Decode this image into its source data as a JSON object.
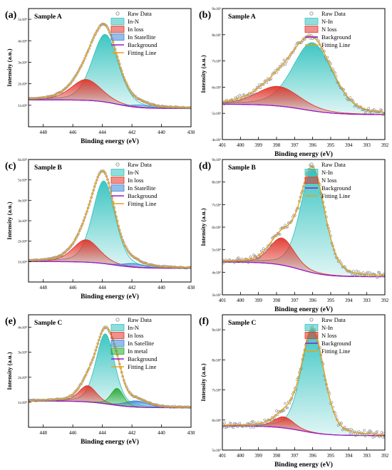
{
  "figure": {
    "colors": {
      "raw_marker": "#8a8a8a",
      "fit_line": "#e6a21a",
      "background": "#9a19c8",
      "in_n": "#33c3bf",
      "loss": "#e0362c",
      "satellite": "#3d86d6",
      "metal": "#2ba82d"
    }
  },
  "chart_data": [
    {
      "id": "a",
      "type": "line",
      "panel_label": "(a)",
      "sample_label": "Sample A",
      "xlabel": "Binding energy (eV)",
      "ylabel": "Intensity (a.u.)",
      "x_reversed": true,
      "xlim": [
        449,
        438
      ],
      "x_ticks": [
        448,
        446,
        444,
        442,
        440,
        438
      ],
      "ylim": [
        0,
        55000
      ],
      "y_ticks": [
        {
          "v": 10000,
          "l": "1x10⁴"
        },
        {
          "v": 20000,
          "l": "2x10⁴"
        },
        {
          "v": 30000,
          "l": "3x10⁴"
        },
        {
          "v": 40000,
          "l": "4x10⁴"
        },
        {
          "v": 50000,
          "l": "5x10⁴"
        }
      ],
      "background": {
        "left": 12500,
        "right": 8500,
        "mid": 443,
        "width": 1.6
      },
      "components": [
        {
          "name": "In-N",
          "center": 443.8,
          "height": 31500,
          "fwhm": 2.1,
          "color": "in_n"
        },
        {
          "name": "In loss",
          "center": 445.1,
          "height": 9700,
          "fwhm": 2.4,
          "color": "loss"
        },
        {
          "name": "In Statellite",
          "center": 441.4,
          "height": 1200,
          "fwhm": 1.4,
          "color": "satellite"
        }
      ],
      "legend": [
        "Raw Data",
        "In-N",
        "In loss",
        "In Statellite",
        "Background",
        "Fitting Line"
      ],
      "noise": 250
    },
    {
      "id": "b",
      "type": "line",
      "panel_label": "(b)",
      "sample_label": "Sample A",
      "xlabel": "Binding energy (eV)",
      "ylabel": "Intensity (a.u.)",
      "x_reversed": true,
      "xlim": [
        401,
        392
      ],
      "x_ticks": [
        401,
        400,
        399,
        398,
        397,
        396,
        395,
        394,
        393,
        392
      ],
      "ylim": [
        4000,
        9000
      ],
      "y_ticks": [
        {
          "v": 4000,
          "l": "4x10³"
        },
        {
          "v": 5000,
          "l": "5x10³"
        },
        {
          "v": 6000,
          "l": "6x10³"
        },
        {
          "v": 7000,
          "l": "7x10³"
        },
        {
          "v": 8000,
          "l": "8x10³"
        },
        {
          "v": 9000,
          "l": "9x10³"
        }
      ],
      "background": {
        "left": 5350,
        "right": 4950,
        "mid": 396.5,
        "width": 2.0
      },
      "components": [
        {
          "name": "N-In",
          "center": 396.0,
          "height": 2600,
          "fwhm": 2.6,
          "color": "in_n"
        },
        {
          "name": "N loss",
          "center": 397.9,
          "height": 750,
          "fwhm": 2.8,
          "color": "loss"
        }
      ],
      "legend": [
        "Raw Data",
        "N-In",
        "N loss",
        "Background",
        "Fitting Line"
      ],
      "noise": 120
    },
    {
      "id": "c",
      "type": "line",
      "panel_label": "(c)",
      "sample_label": "Sample B",
      "xlabel": "Binding energy (eV)",
      "ylabel": "Intensity (a.u.)",
      "x_reversed": true,
      "xlim": [
        449,
        438
      ],
      "x_ticks": [
        448,
        446,
        444,
        442,
        440,
        438
      ],
      "ylim": [
        0,
        60000
      ],
      "y_ticks": [
        {
          "v": 10000,
          "l": "1x10⁴"
        },
        {
          "v": 20000,
          "l": "2x10⁴"
        },
        {
          "v": 30000,
          "l": "3x10⁴"
        },
        {
          "v": 40000,
          "l": "4x10⁴"
        },
        {
          "v": 50000,
          "l": "5x10⁴"
        },
        {
          "v": 60000,
          "l": "6x10⁴"
        }
      ],
      "background": {
        "left": 10000,
        "right": 6700,
        "mid": 443.2,
        "width": 1.8
      },
      "components": [
        {
          "name": "In-N",
          "center": 443.9,
          "height": 40500,
          "fwhm": 1.8,
          "color": "in_n"
        },
        {
          "name": "In loss",
          "center": 445.1,
          "height": 11000,
          "fwhm": 2.1,
          "color": "loss"
        },
        {
          "name": "In Statellite",
          "center": 441.9,
          "height": 1800,
          "fwhm": 1.6,
          "color": "satellite"
        }
      ],
      "legend": [
        "Raw Data",
        "In-N",
        "In loss",
        "In Statellite",
        "Background",
        "Fitting Line"
      ],
      "noise": 250
    },
    {
      "id": "d",
      "type": "line",
      "panel_label": "(d)",
      "sample_label": "Sample B",
      "xlabel": "Binding energy (eV)",
      "ylabel": "Intensity (a.u.)",
      "x_reversed": true,
      "xlim": [
        401,
        392
      ],
      "x_ticks": [
        401,
        400,
        399,
        398,
        397,
        396,
        395,
        394,
        393,
        392
      ],
      "ylim": [
        3000,
        9000
      ],
      "y_ticks": [
        {
          "v": 3000,
          "l": "3x10³"
        },
        {
          "v": 4000,
          "l": "4x10³"
        },
        {
          "v": 5000,
          "l": "5x10³"
        },
        {
          "v": 6000,
          "l": "6x10³"
        },
        {
          "v": 7000,
          "l": "7x10³"
        },
        {
          "v": 8000,
          "l": "8x10³"
        },
        {
          "v": 9000,
          "l": "9x10³"
        }
      ],
      "background": {
        "left": 4450,
        "right": 3800,
        "mid": 396.7,
        "width": 1.6
      },
      "components": [
        {
          "name": "N-In",
          "center": 396.0,
          "height": 4600,
          "fwhm": 1.6,
          "color": "in_n"
        },
        {
          "name": "N loss",
          "center": 397.7,
          "height": 1200,
          "fwhm": 1.6,
          "color": "loss"
        }
      ],
      "legend": [
        "Raw Data",
        "N-In",
        "N loss",
        "Background",
        "Fitting Line"
      ],
      "noise": 110
    },
    {
      "id": "e",
      "type": "line",
      "panel_label": "(e)",
      "sample_label": "Sample C",
      "xlabel": "Binding energy (eV)",
      "ylabel": "Intensity (a.u.)",
      "x_reversed": true,
      "xlim": [
        449,
        438
      ],
      "x_ticks": [
        448,
        446,
        444,
        442,
        440,
        438
      ],
      "ylim": [
        0,
        45000
      ],
      "y_ticks": [
        {
          "v": 10000,
          "l": "1x10⁴"
        },
        {
          "v": 20000,
          "l": "2x10⁴"
        },
        {
          "v": 30000,
          "l": "3x10⁴"
        },
        {
          "v": 40000,
          "l": "4x10⁴"
        }
      ],
      "background": {
        "left": 10500,
        "right": 7800,
        "mid": 443.5,
        "width": 1.8
      },
      "components": [
        {
          "name": "In-N",
          "center": 443.8,
          "height": 28000,
          "fwhm": 1.5,
          "color": "in_n"
        },
        {
          "name": "In loss",
          "center": 445.0,
          "height": 6500,
          "fwhm": 1.4,
          "color": "loss"
        },
        {
          "name": "In Satellite",
          "center": 441.7,
          "height": 2500,
          "fwhm": 1.8,
          "color": "satellite"
        },
        {
          "name": "In metal",
          "center": 443.0,
          "height": 6800,
          "fwhm": 1.0,
          "color": "metal"
        }
      ],
      "legend": [
        "Raw Data",
        "In-N",
        "In loss",
        "In Satellite",
        "In metal",
        "Background",
        "Fitting Line"
      ],
      "noise": 220
    },
    {
      "id": "f",
      "type": "line",
      "panel_label": "(f)",
      "sample_label": "Sample C",
      "xlabel": "Binding energy (eV)",
      "ylabel": "Intensity (a.u.)",
      "x_reversed": true,
      "xlim": [
        401,
        392
      ],
      "x_ticks": [
        401,
        400,
        399,
        398,
        397,
        396,
        395,
        394,
        393,
        392
      ],
      "ylim": [
        5000,
        9500
      ],
      "y_ticks": [
        {
          "v": 5000,
          "l": "5x10³"
        },
        {
          "v": 6000,
          "l": "6x10³"
        },
        {
          "v": 7000,
          "l": "7x10³"
        },
        {
          "v": 8000,
          "l": "8x10³"
        },
        {
          "v": 9000,
          "l": "9x10³"
        }
      ],
      "background": {
        "left": 5800,
        "right": 5480,
        "mid": 396.6,
        "width": 1.6
      },
      "components": [
        {
          "name": "N-In",
          "center": 396.0,
          "height": 3450,
          "fwhm": 1.5,
          "color": "in_n"
        },
        {
          "name": "N loss",
          "center": 397.6,
          "height": 370,
          "fwhm": 1.3,
          "color": "loss"
        }
      ],
      "legend": [
        "Raw Data",
        "N-In",
        "N loss",
        "Background",
        "Fitting Line"
      ],
      "noise": 110
    }
  ]
}
